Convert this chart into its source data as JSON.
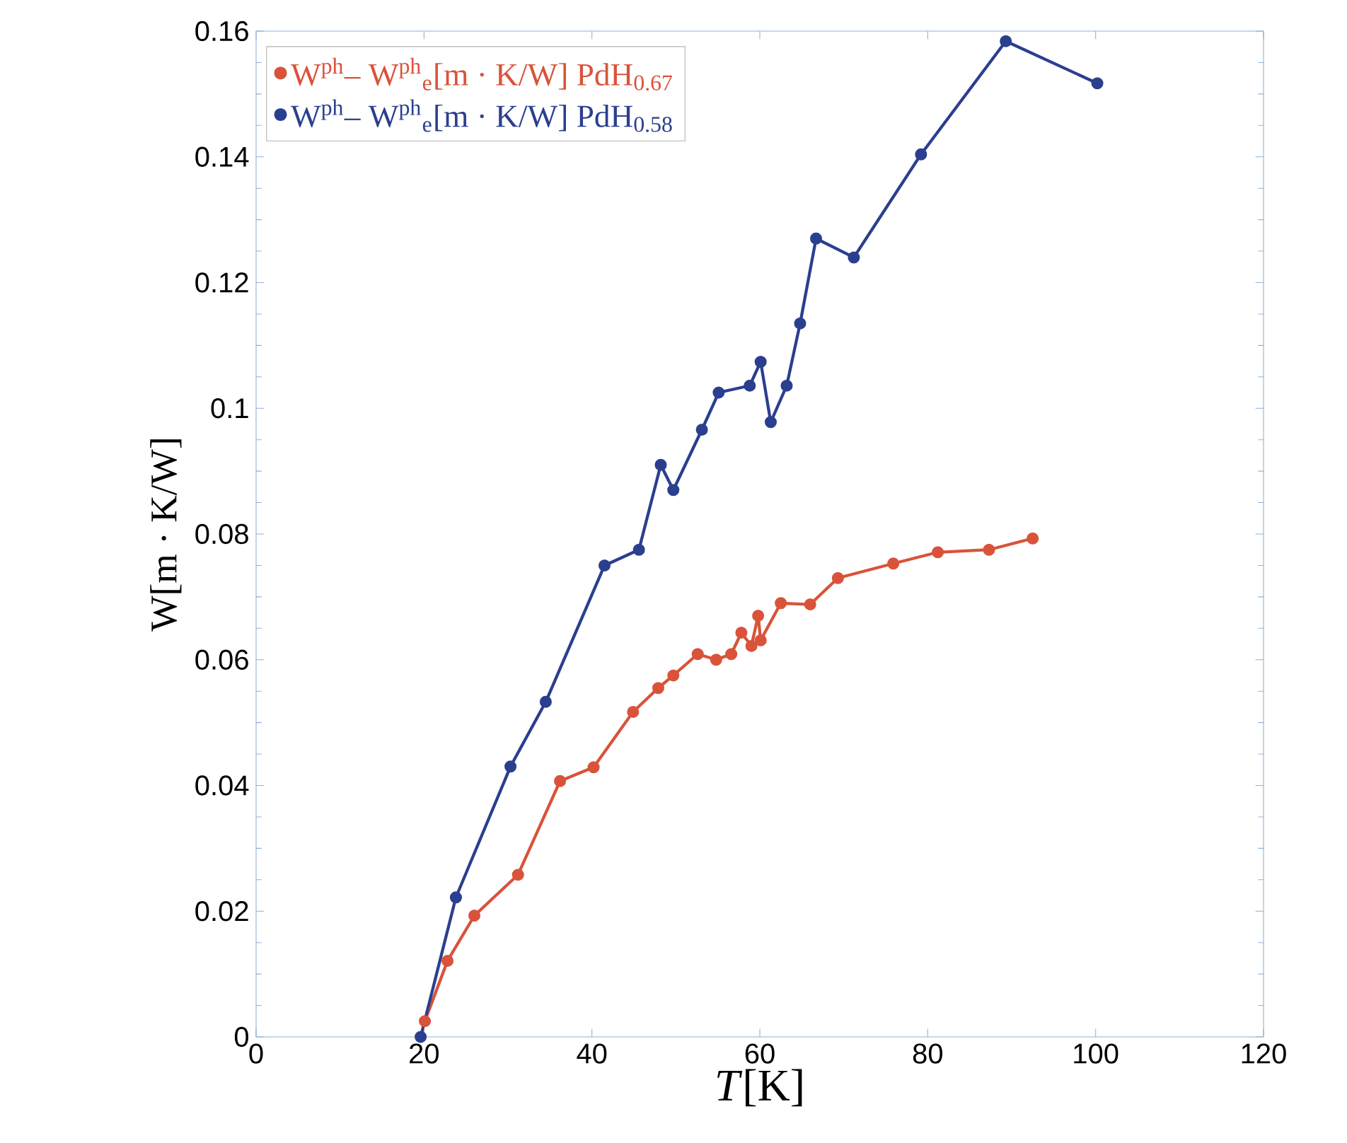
{
  "chart_data": {
    "type": "line",
    "xlabel": "*T*[K]",
    "ylabel": "W[m · K/W]",
    "xlim": [
      0,
      120
    ],
    "ylim": [
      0,
      0.16
    ],
    "xticks": [
      0,
      20,
      40,
      60,
      80,
      100,
      120
    ],
    "yticks": [
      0,
      0.02,
      0.04,
      0.06,
      0.08,
      0.1,
      0.12,
      0.14,
      0.16
    ],
    "grid": false,
    "legend": "top left",
    "marker": "circle",
    "line_style": "solid",
    "series": [
      {
        "name": "W$^{ph}$– W$^{ph}$$_{e}$[m · K/W]  PdH$_{0.67}$",
        "color": "#d9533a",
        "x": [
          20.1,
          22.8,
          26.0,
          31.2,
          36.2,
          40.2,
          44.9,
          47.9,
          49.7,
          52.6,
          54.8,
          56.6,
          57.8,
          59.0,
          59.8,
          60.1,
          62.5,
          66.0,
          69.3,
          75.9,
          81.2,
          87.3,
          92.5
        ],
        "values": [
          0.0025,
          0.0121,
          0.0193,
          0.0258,
          0.0407,
          0.0429,
          0.0517,
          0.0555,
          0.0575,
          0.0609,
          0.06,
          0.0609,
          0.0643,
          0.0622,
          0.067,
          0.0631,
          0.069,
          0.0688,
          0.073,
          0.0753,
          0.0771,
          0.0775,
          0.0793
        ]
      },
      {
        "name": "W$^{ph}$– W$^{ph}$$_{e}$[m · K/W]  PdH$_{0.58}$",
        "color": "#2b3f8f",
        "x": [
          19.6,
          23.8,
          30.3,
          34.5,
          41.5,
          45.6,
          48.2,
          49.7,
          53.1,
          55.1,
          58.8,
          60.1,
          61.3,
          63.2,
          64.8,
          66.7,
          71.2,
          79.2,
          89.3,
          100.2
        ],
        "values": [
          0.0,
          0.0222,
          0.043,
          0.0533,
          0.075,
          0.0775,
          0.091,
          0.087,
          0.0966,
          0.1025,
          0.1036,
          0.1074,
          0.0978,
          0.1036,
          0.1135,
          0.127,
          0.124,
          0.1404,
          0.1584,
          0.1517
        ]
      }
    ]
  }
}
